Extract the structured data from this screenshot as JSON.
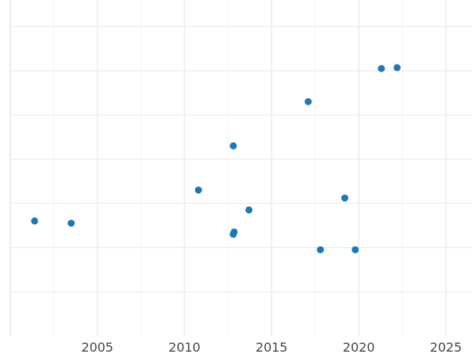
{
  "chart_data": {
    "type": "scatter",
    "title": "",
    "xlabel": "",
    "ylabel": "",
    "xlim": [
      2000,
      2026.5
    ],
    "ylim": [
      0,
      7.6
    ],
    "xticks": [
      2005,
      2010,
      2015,
      2020,
      2025
    ],
    "x_tick_labels": [
      "2005",
      "2010",
      "2015",
      "2020",
      "2025"
    ],
    "y_gridlines": [
      1,
      2,
      3,
      4,
      5,
      6,
      7
    ],
    "y_tick_labels_visible": false,
    "grid": true,
    "legend": "none",
    "marker_color": "#1f77b4",
    "points": [
      {
        "x": 2001.4,
        "y": 2.6
      },
      {
        "x": 2003.5,
        "y": 2.55
      },
      {
        "x": 2010.8,
        "y": 3.3
      },
      {
        "x": 2012.8,
        "y": 4.3
      },
      {
        "x": 2012.8,
        "y": 2.3
      },
      {
        "x": 2012.85,
        "y": 2.35
      },
      {
        "x": 2013.7,
        "y": 2.85
      },
      {
        "x": 2017.1,
        "y": 5.3
      },
      {
        "x": 2017.8,
        "y": 1.95
      },
      {
        "x": 2019.2,
        "y": 3.12
      },
      {
        "x": 2019.8,
        "y": 1.95
      },
      {
        "x": 2021.3,
        "y": 6.05
      },
      {
        "x": 2022.2,
        "y": 6.07
      }
    ]
  }
}
